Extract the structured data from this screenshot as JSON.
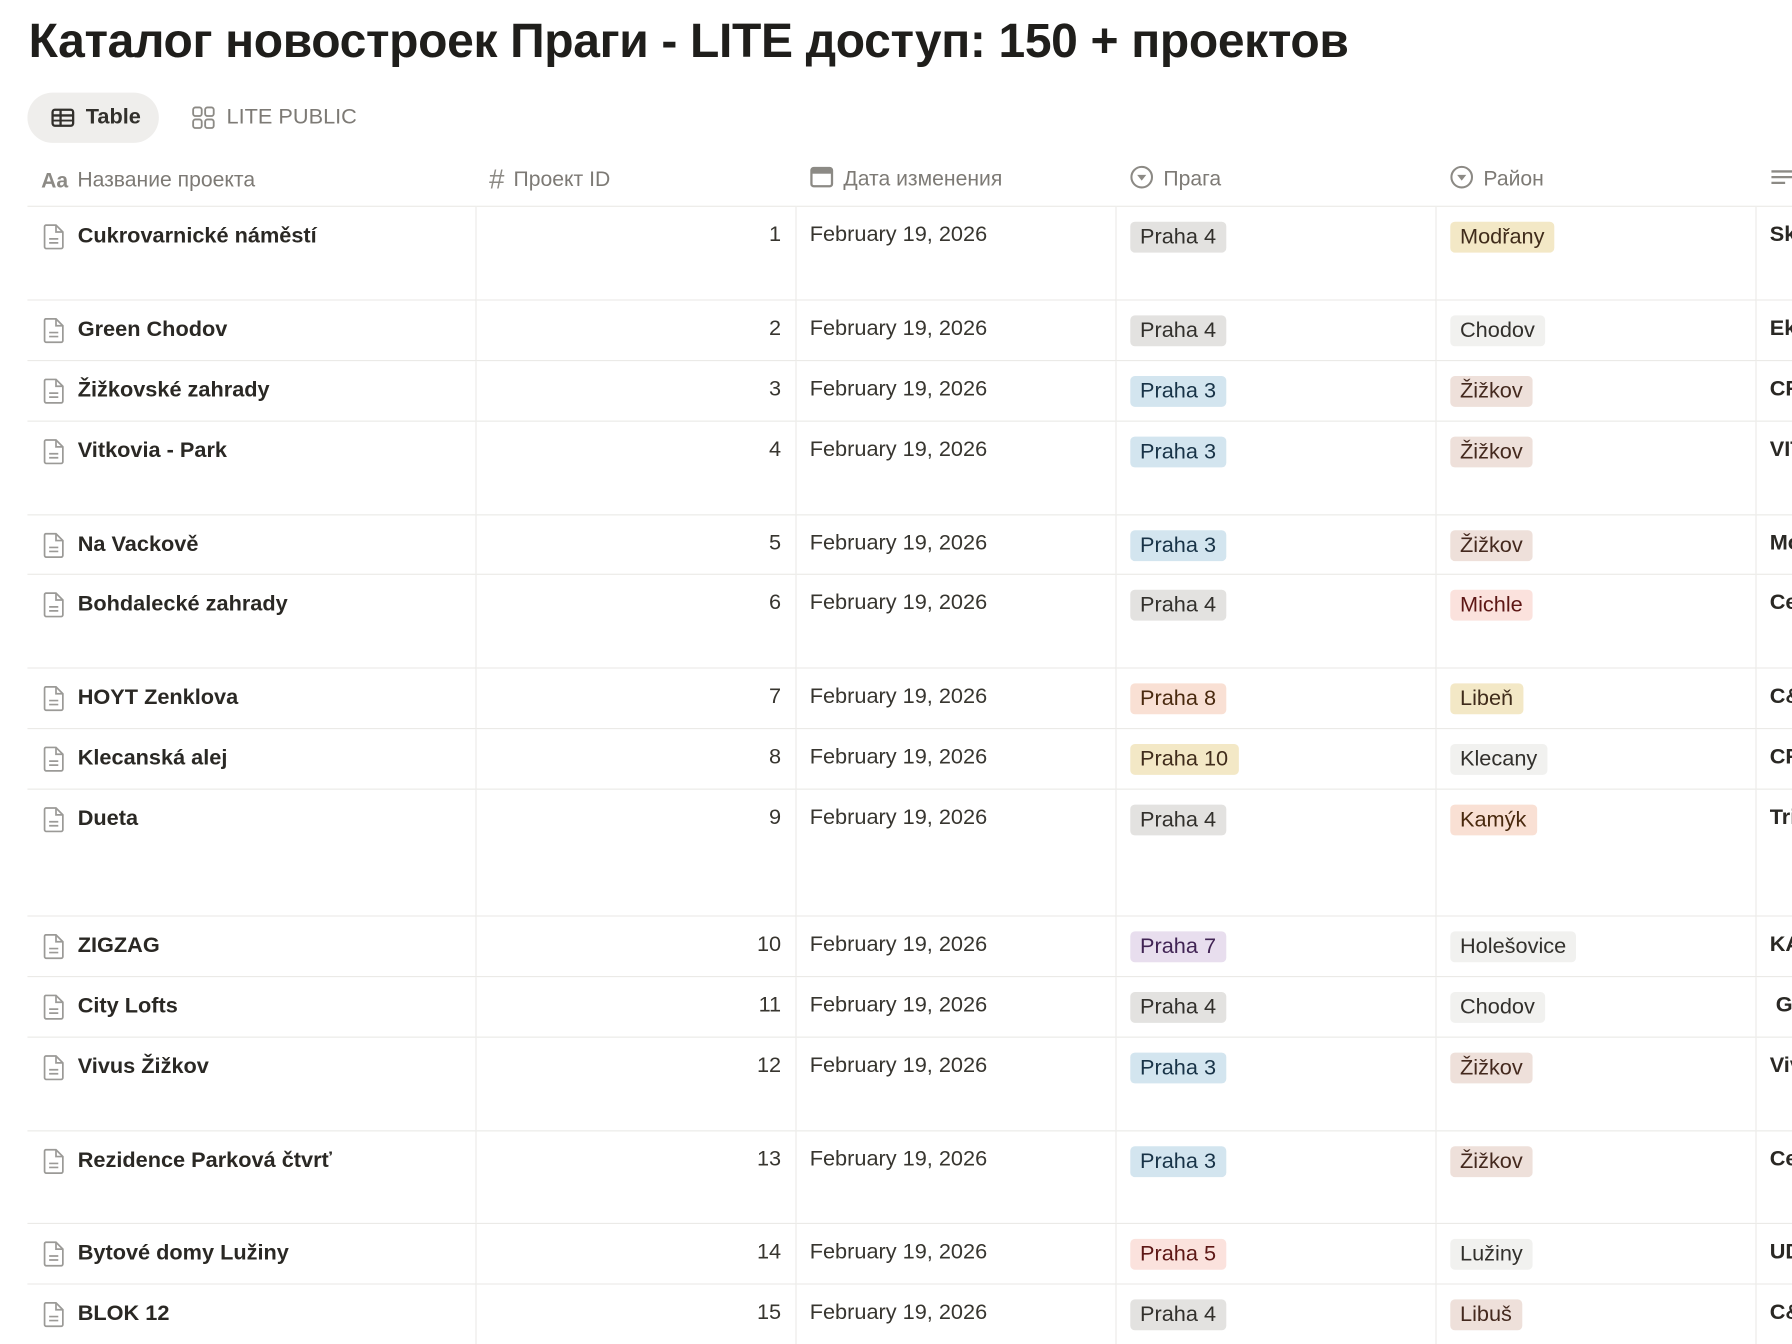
{
  "title": "Каталог новостроек Праги - LITE доступ: 150 + проектов",
  "views": [
    {
      "label": "Table",
      "icon": "table-icon",
      "active": true
    },
    {
      "label": "LITE PUBLIC",
      "icon": "gallery-icon",
      "active": false
    }
  ],
  "columns": [
    {
      "label": "Название проекта",
      "icon": "text-type-icon"
    },
    {
      "label": "Проект ID",
      "icon": "number-icon"
    },
    {
      "label": "Дата изменения",
      "icon": "calendar-icon"
    },
    {
      "label": "Прага",
      "icon": "select-icon"
    },
    {
      "label": "Район",
      "icon": "select-icon"
    },
    {
      "label": "",
      "icon": "text-lines-icon"
    }
  ],
  "tag_colors": {
    "gray": {
      "bg": "#e3e2e0",
      "fg": "#32302c"
    },
    "default": {
      "bg": "#f1f1ef",
      "fg": "#32302c"
    },
    "brown": {
      "bg": "#eee0da",
      "fg": "#44291e"
    },
    "orange": {
      "bg": "#f9e0d4",
      "fg": "#49290e"
    },
    "yellow": {
      "bg": "#f3e8c6",
      "fg": "#402c1b"
    },
    "blue": {
      "bg": "#d3e5ef",
      "fg": "#183347"
    },
    "purple": {
      "bg": "#e8deee",
      "fg": "#412454"
    },
    "red": {
      "bg": "#fbe2dd",
      "fg": "#5d1715"
    }
  },
  "rows": [
    {
      "name": "Cukrovarnické náměstí",
      "id": "1",
      "date": "February 19, 2026",
      "praha": "Praha 4",
      "praha_color": "gray",
      "rayon": "Modřany",
      "rayon_color": "yellow",
      "extra": "Sk"
    },
    {
      "name": "Green Chodov",
      "id": "2",
      "date": "February 19, 2026",
      "praha": "Praha 4",
      "praha_color": "gray",
      "rayon": "Chodov",
      "rayon_color": "default",
      "extra": "Ek"
    },
    {
      "name": "Žižkovské zahrady",
      "id": "3",
      "date": "February 19, 2026",
      "praha": "Praha 3",
      "praha_color": "blue",
      "rayon": "Žižkov",
      "rayon_color": "brown",
      "extra": "CF"
    },
    {
      "name": "Vitkovia - Park",
      "id": "4",
      "date": "February 19, 2026",
      "praha": "Praha 3",
      "praha_color": "blue",
      "rayon": "Žižkov",
      "rayon_color": "brown",
      "extra": "VIT"
    },
    {
      "name": "Na Vackově",
      "id": "5",
      "date": "February 19, 2026",
      "praha": "Praha 3",
      "praha_color": "blue",
      "rayon": "Žižkov",
      "rayon_color": "brown",
      "extra": "Mo"
    },
    {
      "name": "Bohdalecké zahrady",
      "id": "6",
      "date": "February 19, 2026",
      "praha": "Praha 4",
      "praha_color": "gray",
      "rayon": "Michle",
      "rayon_color": "red",
      "extra": "Ce"
    },
    {
      "name": "HOYT Zenklova",
      "id": "7",
      "date": "February 19, 2026",
      "praha": "Praha 8",
      "praha_color": "orange",
      "rayon": "Libeň",
      "rayon_color": "yellow",
      "extra": "C&"
    },
    {
      "name": "Klecanská alej",
      "id": "8",
      "date": "February 19, 2026",
      "praha": "Praha 10",
      "praha_color": "yellow",
      "rayon": "Klecany",
      "rayon_color": "default",
      "extra": "CF"
    },
    {
      "name": "Dueta",
      "id": "9",
      "date": "February 19, 2026",
      "praha": "Praha 4",
      "praha_color": "gray",
      "rayon": "Kamýk",
      "rayon_color": "orange",
      "extra": "Tri"
    },
    {
      "name": "ZIGZAG",
      "id": "10",
      "date": "February 19, 2026",
      "praha": "Praha 7",
      "praha_color": "purple",
      "rayon": "Holešovice",
      "rayon_color": "default",
      "extra": "KA"
    },
    {
      "name": "City Lofts",
      "id": "11",
      "date": "February 19, 2026",
      "praha": "Praha 4",
      "praha_color": "gray",
      "rayon": "Chodov",
      "rayon_color": "default",
      "extra": " G"
    },
    {
      "name": " Vivus Žižkov",
      "id": "12",
      "date": "February 19, 2026",
      "praha": "Praha 3",
      "praha_color": "blue",
      "rayon": "Žižkov",
      "rayon_color": "brown",
      "extra": "Viv"
    },
    {
      "name": "Rezidence Parková čtvrť",
      "id": "13",
      "date": "February 19, 2026",
      "praha": "Praha 3",
      "praha_color": "blue",
      "rayon": "Žižkov",
      "rayon_color": "brown",
      "extra": "Ce"
    },
    {
      "name": "Bytové domy Lužiny",
      "id": "14",
      "date": "February 19, 2026",
      "praha": "Praha 5",
      "praha_color": "red",
      "rayon": "Lužiny",
      "rayon_color": "default",
      "extra": "UD"
    },
    {
      "name": "BLOK 12",
      "id": "15",
      "date": "February 19, 2026",
      "praha": "Praha 4",
      "praha_color": "gray",
      "rayon": "Libuš",
      "rayon_color": "brown",
      "extra": "C&"
    }
  ]
}
